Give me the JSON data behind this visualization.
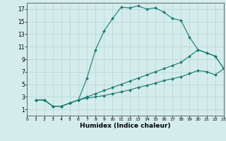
{
  "xlabel": "Humidex (Indice chaleur)",
  "ylabel": "",
  "bg_color": "#d4ecec",
  "grid_color": "#b8d8d8",
  "line_color": "#1a7a6e",
  "xlim": [
    0,
    23
  ],
  "ylim": [
    0,
    18
  ],
  "xticks": [
    0,
    1,
    2,
    3,
    4,
    5,
    6,
    7,
    8,
    9,
    10,
    11,
    12,
    13,
    14,
    15,
    16,
    17,
    18,
    19,
    20,
    21,
    22,
    23
  ],
  "yticks": [
    1,
    3,
    5,
    7,
    9,
    11,
    13,
    15,
    17
  ],
  "line1_x": [
    1,
    2,
    3,
    4,
    5,
    6,
    7,
    8,
    9,
    10,
    11,
    12,
    13,
    14,
    15,
    16,
    17,
    18,
    19,
    20,
    21,
    22,
    23
  ],
  "line1_y": [
    2.5,
    2.5,
    1.5,
    1.5,
    2.0,
    2.5,
    6.0,
    10.5,
    13.5,
    15.5,
    17.3,
    17.2,
    17.5,
    17.0,
    17.2,
    16.5,
    15.5,
    15.2,
    12.5,
    10.5,
    10.0,
    9.5,
    7.5
  ],
  "line2_x": [
    1,
    2,
    3,
    4,
    5,
    6,
    7,
    8,
    9,
    10,
    11,
    12,
    13,
    14,
    15,
    16,
    17,
    18,
    19,
    20,
    21,
    22,
    23
  ],
  "line2_y": [
    2.5,
    2.5,
    1.5,
    1.5,
    2.0,
    2.5,
    3.0,
    3.5,
    4.0,
    4.5,
    5.0,
    5.5,
    6.0,
    6.5,
    7.0,
    7.5,
    8.0,
    8.5,
    9.5,
    10.5,
    10.0,
    9.5,
    7.5
  ],
  "line3_x": [
    1,
    2,
    3,
    4,
    5,
    6,
    7,
    8,
    9,
    10,
    11,
    12,
    13,
    14,
    15,
    16,
    17,
    18,
    19,
    20,
    21,
    22,
    23
  ],
  "line3_y": [
    2.5,
    2.5,
    1.5,
    1.5,
    2.0,
    2.5,
    2.8,
    3.0,
    3.2,
    3.5,
    3.8,
    4.1,
    4.5,
    4.8,
    5.2,
    5.6,
    5.9,
    6.2,
    6.7,
    7.2,
    7.0,
    6.5,
    7.5
  ]
}
